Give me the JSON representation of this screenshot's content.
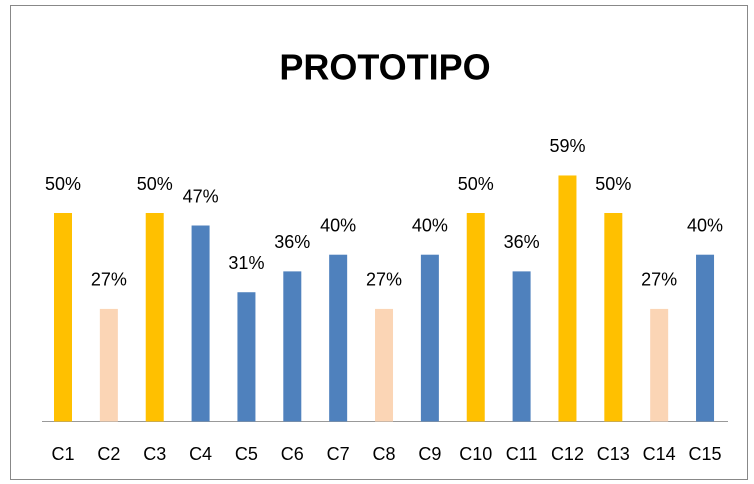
{
  "chart_data": {
    "type": "bar",
    "title": "PROTOTIPO",
    "categories": [
      "C1",
      "C2",
      "C3",
      "C4",
      "C5",
      "C6",
      "C7",
      "C8",
      "C9",
      "C10",
      "C11",
      "C12",
      "C13",
      "C14",
      "C15"
    ],
    "values": [
      50,
      27,
      50,
      47,
      31,
      36,
      40,
      27,
      40,
      50,
      36,
      59,
      50,
      27,
      40
    ],
    "value_labels": [
      "50%",
      "27%",
      "50%",
      "47%",
      "31%",
      "36%",
      "40%",
      "27%",
      "40%",
      "50%",
      "36%",
      "59%",
      "50%",
      "27%",
      "40%"
    ],
    "colors": [
      "#FFC000",
      "#FBD5B5",
      "#FFC000",
      "#4F81BD",
      "#4F81BD",
      "#4F81BD",
      "#4F81BD",
      "#FBD5B5",
      "#4F81BD",
      "#FFC000",
      "#4F81BD",
      "#FFC000",
      "#FFC000",
      "#FBD5B5",
      "#4F81BD"
    ]
  }
}
